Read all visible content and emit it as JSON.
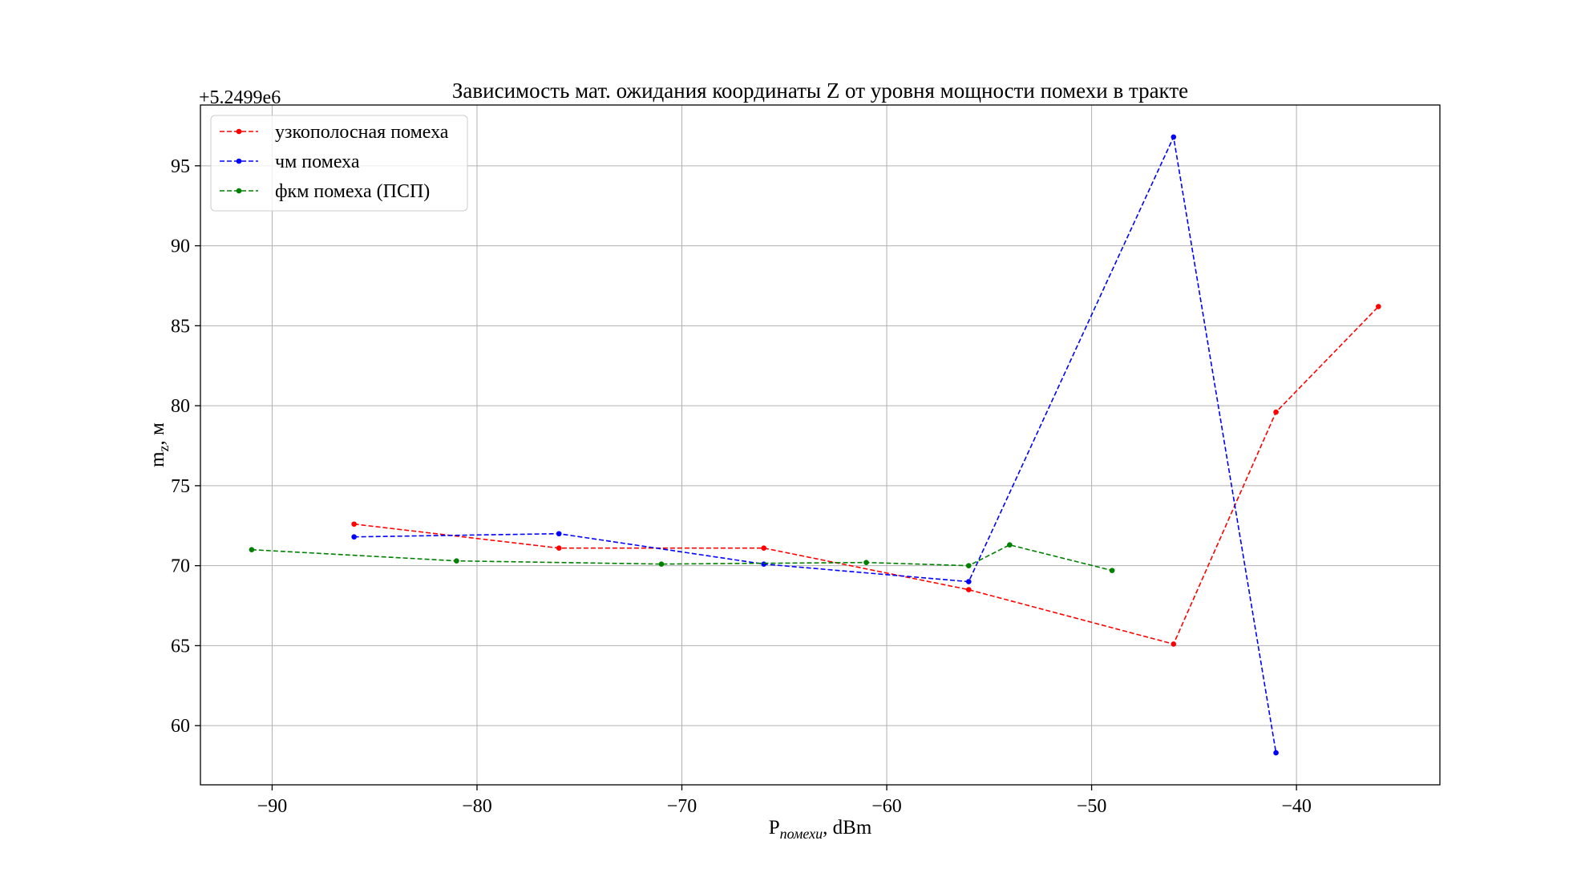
{
  "chart_data": {
    "type": "line",
    "title": "Зависимость мат. ожидания координаты Z от уровня мощности помехи в тракте",
    "xlabel_main": "P",
    "xlabel_sub": "помехи",
    "xlabel_rest": ", dBm",
    "ylabel_main": "m",
    "ylabel_sub": "z",
    "ylabel_rest": ", м",
    "offset_text": "+5.2499e6",
    "xlim": [
      -93.5,
      -33.0
    ],
    "ylim": [
      56.3,
      98.8
    ],
    "xticks": [
      -90,
      -80,
      -70,
      -60,
      -50,
      -40
    ],
    "xtick_labels": [
      "−90",
      "−80",
      "−70",
      "−60",
      "−50",
      "−40"
    ],
    "yticks": [
      60,
      65,
      70,
      75,
      80,
      85,
      90,
      95
    ],
    "ytick_labels": [
      "60",
      "65",
      "70",
      "75",
      "80",
      "85",
      "90",
      "95"
    ],
    "grid": true,
    "legend_position": "top-left",
    "series": [
      {
        "name": "узкополосная помеха",
        "color": "#ff0000",
        "x": [
          -86,
          -76,
          -66,
          -56,
          -46,
          -41,
          -36
        ],
        "y": [
          72.6,
          71.1,
          71.1,
          68.5,
          65.1,
          79.6,
          86.2
        ]
      },
      {
        "name": "чм помеха",
        "color": "#0000ff",
        "x": [
          -86,
          -76,
          -66,
          -56,
          -46,
          -41
        ],
        "y": [
          71.8,
          72.0,
          70.1,
          69.0,
          96.8,
          58.3
        ]
      },
      {
        "name": "фкм помеха (ПСП)",
        "color": "#008000",
        "x": [
          -91,
          -81,
          -71,
          -61,
          -56,
          -54,
          -49
        ],
        "y": [
          71.0,
          70.3,
          70.1,
          70.2,
          70.0,
          71.3,
          69.7
        ]
      }
    ]
  }
}
